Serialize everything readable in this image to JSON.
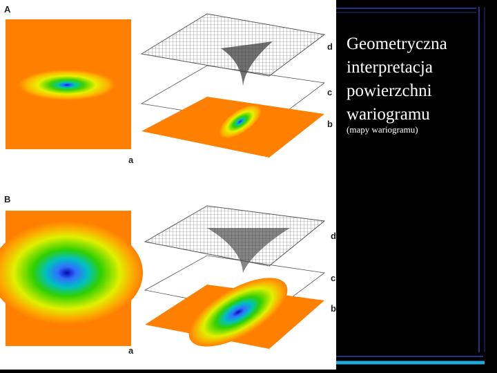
{
  "figure": {
    "panels": [
      {
        "label": "A",
        "map_axis": "a",
        "layers": [
          "d",
          "c",
          "b"
        ]
      },
      {
        "label": "B",
        "map_axis": "a",
        "layers": [
          "d",
          "c",
          "b"
        ]
      }
    ]
  },
  "text": {
    "title_lines": [
      "Geometryczna",
      "interpretacja",
      "powierzchni",
      "wariogramu"
    ],
    "subtitle": "(mapy wariogramu)"
  }
}
